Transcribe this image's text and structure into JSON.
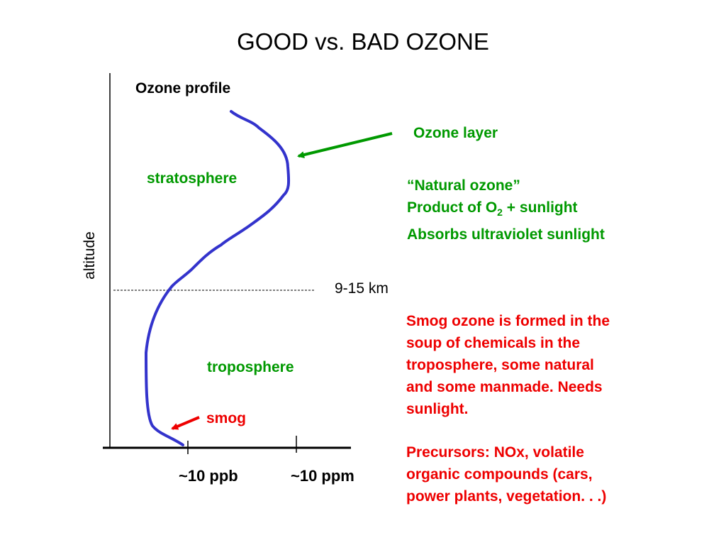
{
  "title": "GOOD vs. BAD OZONE",
  "diagram": {
    "profile_title": "Ozone profile",
    "y_axis_label": "altitude",
    "boundary_label": "9-15 km",
    "stratosphere_label": "stratosphere",
    "troposphere_label": "troposphere",
    "ozone_layer_label": "Ozone layer",
    "smog_label": "smog",
    "x_tick_ppb": "~10 ppb",
    "x_tick_ppm": "~10 ppm"
  },
  "natural": {
    "line1": "“Natural ozone”",
    "line2_prefix": "Product of O",
    "line2_sub": "2",
    "line2_suffix": " + sunlight",
    "line3": "Absorbs ultraviolet sunlight"
  },
  "smog_text": {
    "line1": "Smog ozone is formed in the",
    "line2": "soup of chemicals in the",
    "line3": "troposphere, some natural",
    "line4": "and some manmade. Needs",
    "line5": "sunlight."
  },
  "precursors": {
    "line1": "Precursors: NOx, volatile",
    "line2": "organic compounds (cars,",
    "line3": "power plants, vegetation. . .)"
  },
  "colors": {
    "curve": "#3333cc",
    "green": "#009900",
    "red": "#ee0000",
    "axis": "#000000"
  }
}
